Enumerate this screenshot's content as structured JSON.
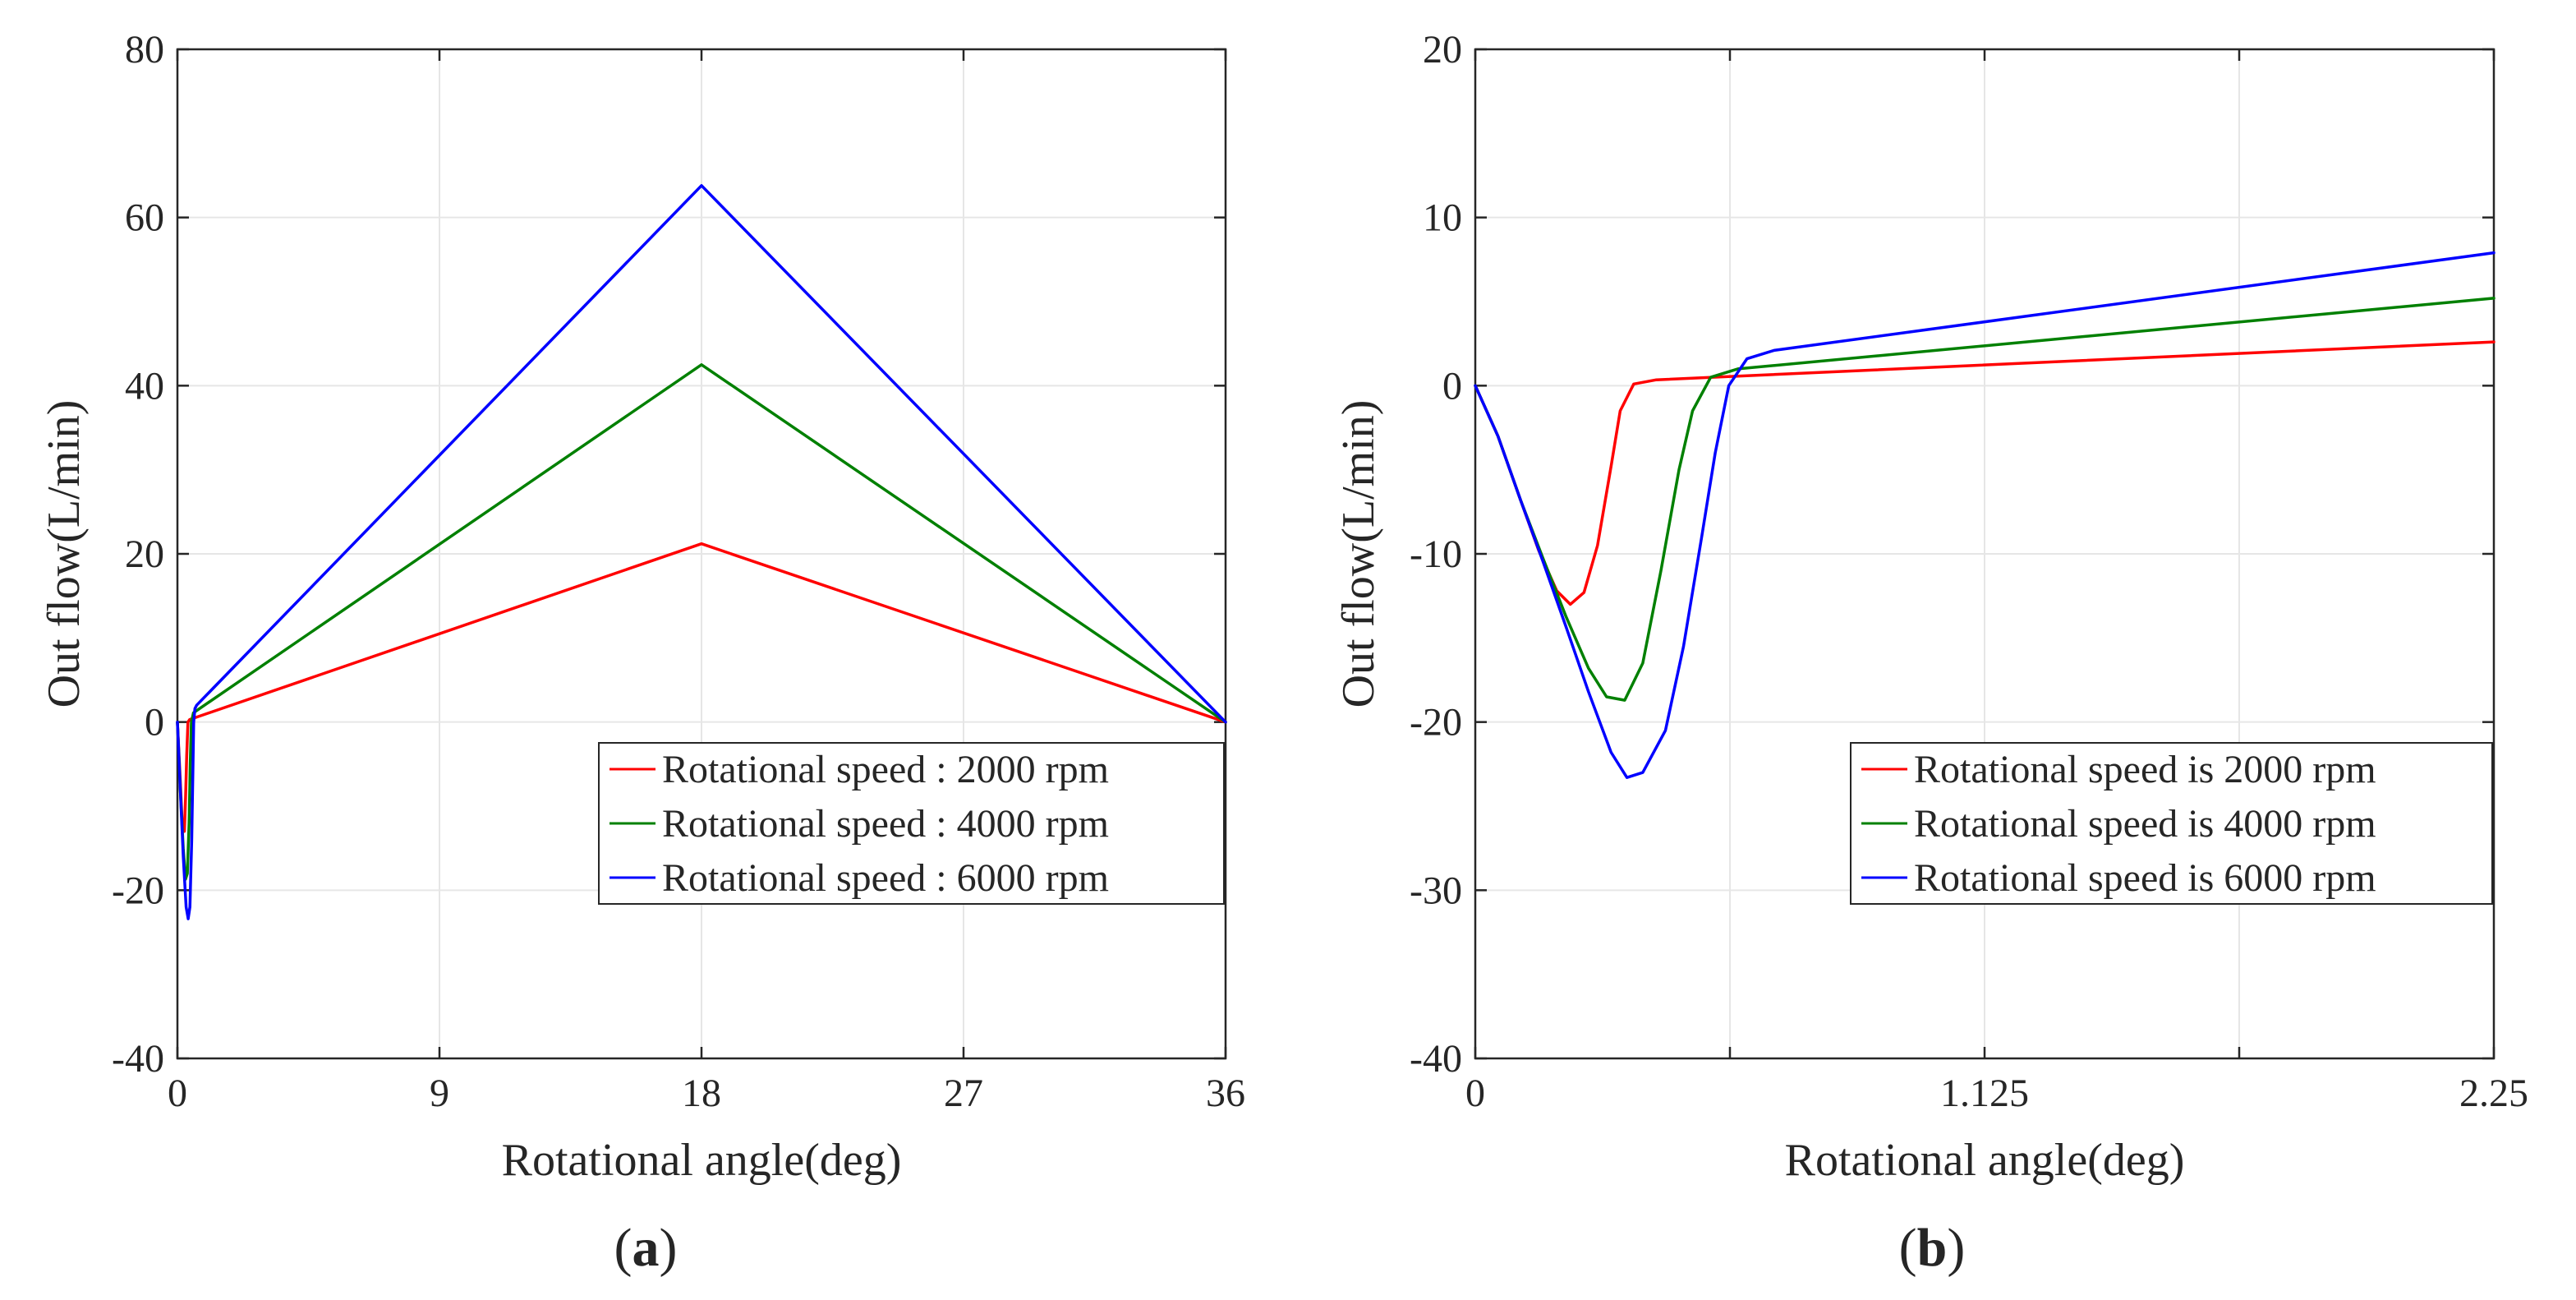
{
  "chart_data": [
    {
      "type": "line",
      "panel_label": "(a)",
      "panel_letter": "a",
      "xlabel": "Rotational angle(deg)",
      "ylabel": "Out flow(L/min)",
      "xlim": [
        0,
        36
      ],
      "ylim": [
        -40,
        80
      ],
      "xticks": [
        0,
        9,
        18,
        27,
        36
      ],
      "xtick_labels": [
        "0",
        "9",
        "18",
        "27",
        "36"
      ],
      "yticks": [
        -40,
        -20,
        0,
        20,
        40,
        60,
        80
      ],
      "ytick_labels": [
        "-40",
        "-20",
        "0",
        "20",
        "40",
        "60",
        "80"
      ],
      "grid": true,
      "legend_position": "lower-right",
      "series": [
        {
          "name": "Rotational speed : 2000 rpm",
          "color": "#ff0000",
          "x": [
            0,
            0.1,
            0.17,
            0.24,
            0.28,
            0.32,
            0.36,
            0.42,
            18,
            36
          ],
          "y": [
            0,
            -7,
            -12.5,
            -13,
            -9,
            -4,
            0,
            0.3,
            21.2,
            0
          ]
        },
        {
          "name": "Rotational speed : 4000 rpm",
          "color": "#008000",
          "x": [
            0,
            0.1,
            0.2,
            0.28,
            0.34,
            0.4,
            0.44,
            0.48,
            0.55,
            18,
            36
          ],
          "y": [
            0,
            -8,
            -15,
            -18.7,
            -18,
            -12,
            -5,
            0,
            1.1,
            42.5,
            0
          ]
        },
        {
          "name": "Rotational speed : 6000 rpm",
          "color": "#0000ff",
          "x": [
            0,
            0.1,
            0.2,
            0.3,
            0.37,
            0.43,
            0.49,
            0.53,
            0.56,
            0.6,
            0.66,
            18,
            36
          ],
          "y": [
            0,
            -8,
            -16,
            -22,
            -23.4,
            -22,
            -14,
            -6,
            0,
            1.6,
            2.0,
            63.8,
            0
          ]
        }
      ]
    },
    {
      "type": "line",
      "panel_label": "(b)",
      "panel_letter": "b",
      "xlabel": "Rotational angle(deg)",
      "ylabel": "Out flow(L/min)",
      "xlim": [
        0,
        2.25
      ],
      "ylim": [
        -40,
        20
      ],
      "xticks": [
        0,
        0.5625,
        1.125,
        1.6875,
        2.25
      ],
      "xtick_labels": [
        "0",
        "",
        "1.125",
        "",
        "2.25"
      ],
      "yticks": [
        -40,
        -30,
        -20,
        -10,
        0,
        10,
        20
      ],
      "ytick_labels": [
        "-40",
        "-30",
        "-20",
        "-10",
        "0",
        "10",
        "20"
      ],
      "grid": true,
      "legend_position": "lower-right",
      "series": [
        {
          "name": "Rotational speed is 2000 rpm",
          "color": "#ff0000",
          "x": [
            0,
            0.05,
            0.1,
            0.14,
            0.18,
            0.21,
            0.24,
            0.27,
            0.3,
            0.32,
            0.35,
            0.4,
            2.25
          ],
          "y": [
            0,
            -3,
            -6.8,
            -9.8,
            -12.2,
            -13.0,
            -12.3,
            -9.5,
            -4.8,
            -1.5,
            0.1,
            0.35,
            2.6
          ]
        },
        {
          "name": "Rotational speed is 4000 rpm",
          "color": "#008000",
          "x": [
            0,
            0.05,
            0.1,
            0.15,
            0.2,
            0.25,
            0.29,
            0.33,
            0.37,
            0.41,
            0.45,
            0.48,
            0.52,
            0.58,
            2.25
          ],
          "y": [
            0,
            -3,
            -6.8,
            -10.3,
            -13.7,
            -16.8,
            -18.5,
            -18.7,
            -16.5,
            -11,
            -5,
            -1.5,
            0.5,
            1.0,
            5.2
          ]
        },
        {
          "name": "Rotational speed is 6000 rpm",
          "color": "#0000ff",
          "x": [
            0,
            0.05,
            0.1,
            0.15,
            0.2,
            0.25,
            0.3,
            0.335,
            0.37,
            0.42,
            0.46,
            0.5,
            0.53,
            0.56,
            0.6,
            0.66,
            2.25
          ],
          "y": [
            0,
            -3,
            -6.8,
            -10.5,
            -14.3,
            -18.2,
            -21.8,
            -23.3,
            -23.0,
            -20.5,
            -15.5,
            -9,
            -4,
            0,
            1.6,
            2.1,
            7.9
          ]
        }
      ]
    }
  ]
}
